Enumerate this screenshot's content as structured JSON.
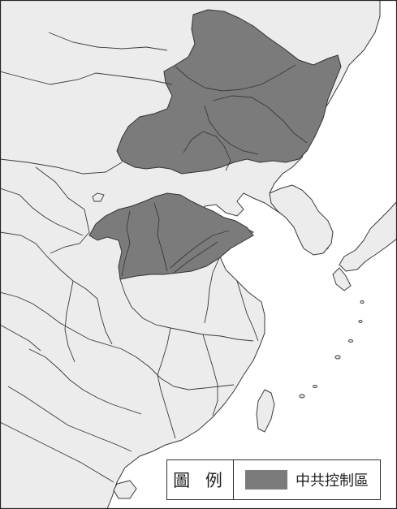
{
  "legend": {
    "title": "圖 例",
    "items": [
      {
        "label": "中共控制區",
        "color": "#7b7b7b"
      }
    ]
  },
  "colors": {
    "sea": "#ffffff",
    "land": "#ececec",
    "controlled": "#7b7b7b",
    "border": "#3a3a3a",
    "frame": "#222222"
  }
}
